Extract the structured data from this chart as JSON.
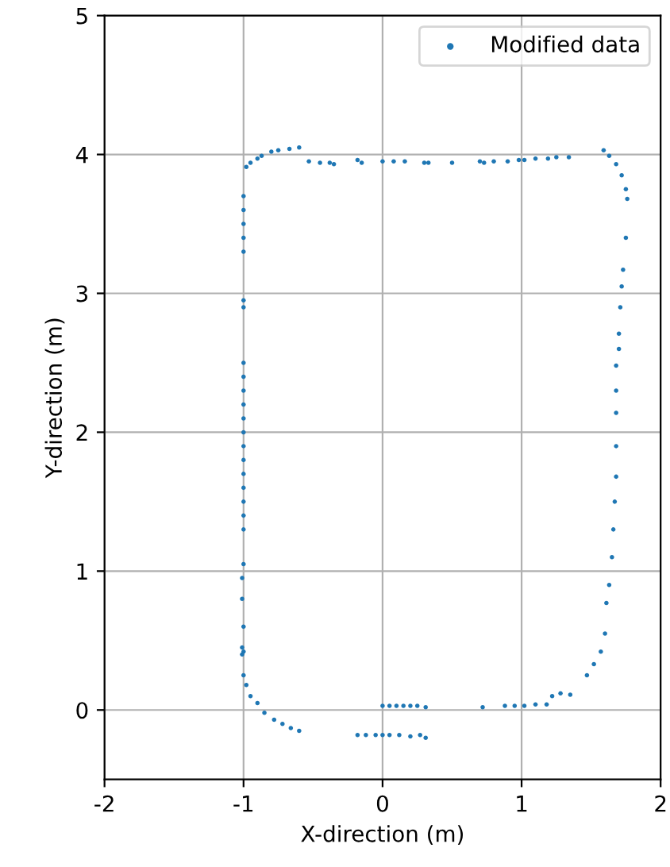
{
  "chart_data": {
    "type": "scatter",
    "xlabel": "X-direction (m)",
    "ylabel": "Y-direction (m)",
    "series": [
      {
        "name": "Modified data",
        "color": "#1f77b4",
        "x": [
          -1.0,
          -1.0,
          -1.0,
          -1.01,
          -1.01,
          -1.0,
          -1.0,
          -1.0,
          -1.0,
          -1.0,
          -1.0,
          -1.0,
          -1.0,
          -1.0,
          -1.0,
          -1.0,
          -1.0,
          -1.0,
          -1.0,
          -1.0,
          -1.0,
          -1.0,
          -1.0,
          -1.0,
          -1.0,
          -1.0,
          -1.01,
          -1.01,
          -0.98,
          -0.95,
          -0.9,
          -0.85,
          -0.78,
          -0.72,
          -0.66,
          -0.6,
          -0.18,
          -0.12,
          -0.05,
          0.0,
          0.05,
          0.12,
          0.2,
          0.27,
          0.31,
          0.0,
          0.05,
          0.1,
          0.15,
          0.2,
          0.25,
          0.31,
          0.72,
          0.88,
          0.95,
          1.02,
          1.1,
          1.18,
          1.22,
          1.28,
          1.35,
          1.47,
          1.52,
          1.57,
          1.6,
          1.61,
          1.63,
          1.65,
          1.66,
          1.67,
          1.68,
          1.68,
          1.68,
          1.68,
          1.68,
          1.7,
          1.7,
          1.71,
          1.72,
          1.73,
          1.75,
          1.76,
          1.75,
          1.72,
          1.68,
          1.63,
          1.59,
          -0.98,
          -0.95,
          -0.9,
          -0.87,
          -0.8,
          -0.75,
          -0.67,
          -0.6,
          -0.53,
          -0.45,
          -0.38,
          -0.35,
          -0.18,
          -0.15,
          0.0,
          0.08,
          0.16,
          0.3,
          0.33,
          0.5,
          0.7,
          0.73,
          0.8,
          0.9,
          0.98,
          1.02,
          1.1,
          1.19,
          1.25,
          1.34
        ],
        "values": [
          0.25,
          0.42,
          0.6,
          0.8,
          0.95,
          1.05,
          1.3,
          1.4,
          1.5,
          1.6,
          1.7,
          1.8,
          1.9,
          2.0,
          2.1,
          2.2,
          2.3,
          2.4,
          2.5,
          2.9,
          2.95,
          3.3,
          3.4,
          3.5,
          3.6,
          3.7,
          0.45,
          0.4,
          0.18,
          0.1,
          0.05,
          -0.02,
          -0.07,
          -0.1,
          -0.13,
          -0.15,
          -0.18,
          -0.18,
          -0.18,
          -0.18,
          -0.18,
          -0.18,
          -0.19,
          -0.18,
          -0.2,
          0.03,
          0.03,
          0.03,
          0.03,
          0.03,
          0.03,
          0.02,
          0.02,
          0.03,
          0.03,
          0.03,
          0.04,
          0.04,
          0.1,
          0.12,
          0.11,
          0.25,
          0.33,
          0.42,
          0.55,
          0.77,
          0.9,
          1.1,
          1.3,
          1.5,
          1.68,
          1.9,
          2.14,
          2.3,
          2.48,
          2.6,
          2.71,
          2.9,
          3.05,
          3.17,
          3.4,
          3.68,
          3.75,
          3.85,
          3.93,
          3.99,
          4.03,
          3.91,
          3.94,
          3.97,
          3.99,
          4.02,
          4.03,
          4.04,
          4.05,
          3.95,
          3.94,
          3.94,
          3.93,
          3.96,
          3.94,
          3.95,
          3.95,
          3.95,
          3.94,
          3.94,
          3.94,
          3.95,
          3.94,
          3.95,
          3.95,
          3.96,
          3.96,
          3.97,
          3.97,
          3.98,
          3.98
        ]
      }
    ],
    "marker": "circle",
    "xlim": [
      -2,
      2
    ],
    "ylim": [
      -0.5,
      5
    ],
    "xticks": [
      -2,
      -1,
      0,
      1,
      2
    ],
    "yticks": [
      0,
      1,
      2,
      3,
      4,
      5
    ],
    "grid": true,
    "legend": "top right"
  }
}
